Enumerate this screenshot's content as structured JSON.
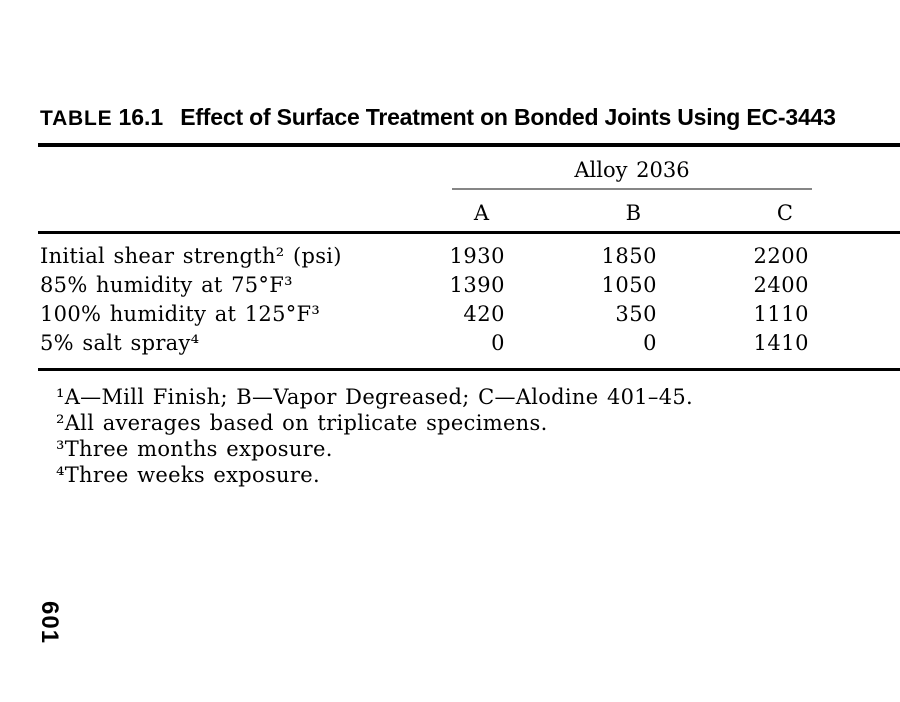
{
  "page": {
    "number": "601",
    "background_color": "#ffffff",
    "text_color": "#000000",
    "rule_color": "#000000",
    "spanner_rule_color": "#868686"
  },
  "title": {
    "kicker": "TABLE",
    "number": "16.1",
    "text": "Effect of Surface Treatment on Bonded Joints Using EC-3443"
  },
  "table": {
    "spanner": "Alloy 2036",
    "columns": [
      "A",
      "B",
      "C"
    ],
    "rows": [
      {
        "label": "Initial shear strength² (psi)",
        "a": "1930",
        "b": "1850",
        "c": "2200"
      },
      {
        "label": "85% humidity at 75°F³",
        "a": "1390",
        "b": "1050",
        "c": "2400"
      },
      {
        "label": "100% humidity at 125°F³",
        "a": "420",
        "b": "350",
        "c": "1110"
      },
      {
        "label": "5% salt spray⁴",
        "a": "0",
        "b": "0",
        "c": "1410"
      }
    ]
  },
  "footnotes": [
    "¹A—Mill Finish; B—Vapor Degreased; C—Alodine 401–45.",
    "²All averages based on triplicate specimens.",
    "³Three months exposure.",
    "⁴Three weeks exposure."
  ]
}
